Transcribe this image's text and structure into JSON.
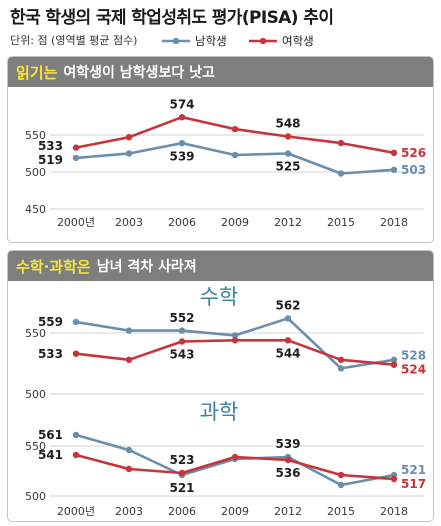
{
  "header": {
    "title": "한국 학생의 국제 학업성취도 평가(PISA) 추이",
    "unit": "단위: 점 (영역별 평균 점수)"
  },
  "panels": [
    {
      "highlight": "읽기는",
      "text": "여학생이 남학생보다 낫고"
    },
    {
      "highlight": "수학·과학은",
      "text": "남녀 격차 사라져"
    }
  ],
  "chart_data": [
    {
      "type": "line",
      "x": [
        2000,
        2003,
        2006,
        2009,
        2012,
        2015,
        2018
      ],
      "xticklabels": [
        "2000년",
        "2003",
        "2006",
        "2009",
        "2012",
        "2015",
        "2018"
      ],
      "yticks": [
        450,
        500,
        550
      ],
      "ylim": [
        450,
        580
      ],
      "grid": true,
      "legend": "top",
      "series": [
        {
          "name": "남학생",
          "color": "#6a8eae",
          "values": [
            519,
            525,
            539,
            523,
            525,
            498,
            503
          ],
          "data_labels": [
            "519",
            null,
            "539",
            null,
            "525",
            null,
            "503"
          ]
        },
        {
          "name": "여학생",
          "color": "#c7353a",
          "values": [
            533,
            547,
            574,
            558,
            548,
            539,
            526
          ],
          "data_labels": [
            "533",
            null,
            "574",
            null,
            "548",
            null,
            "526"
          ]
        }
      ]
    },
    {
      "type": "line",
      "title": "수학",
      "x": [
        2000,
        2003,
        2006,
        2009,
        2012,
        2015,
        2018
      ],
      "yticks": [
        500,
        550
      ],
      "ylim": [
        500,
        565
      ],
      "grid": true,
      "series": [
        {
          "name": "남학생",
          "color": "#6a8eae",
          "values": [
            559,
            552,
            552,
            548,
            562,
            521,
            528
          ],
          "data_labels": [
            "559",
            null,
            "552",
            null,
            "562",
            null,
            "528"
          ]
        },
        {
          "name": "여학생",
          "color": "#c7353a",
          "values": [
            533,
            528,
            543,
            544,
            544,
            528,
            524
          ],
          "data_labels": [
            "533",
            null,
            "543",
            null,
            "544",
            null,
            "524"
          ]
        }
      ]
    },
    {
      "type": "line",
      "title": "과학",
      "x": [
        2000,
        2003,
        2006,
        2009,
        2012,
        2015,
        2018
      ],
      "xticklabels": [
        "2000년",
        "2003",
        "2006",
        "2009",
        "2012",
        "2015",
        "2018"
      ],
      "yticks": [
        500,
        550
      ],
      "ylim": [
        500,
        565
      ],
      "grid": true,
      "series": [
        {
          "name": "남학생",
          "color": "#6a8eae",
          "values": [
            561,
            546,
            521,
            537,
            539,
            511,
            521
          ],
          "data_labels": [
            "561",
            null,
            "521",
            null,
            "539",
            null,
            "521"
          ]
        },
        {
          "name": "여학생",
          "color": "#c7353a",
          "values": [
            541,
            527,
            523,
            539,
            536,
            521,
            517
          ],
          "data_labels": [
            "541",
            null,
            "523",
            null,
            "536",
            null,
            "517"
          ]
        }
      ]
    }
  ]
}
